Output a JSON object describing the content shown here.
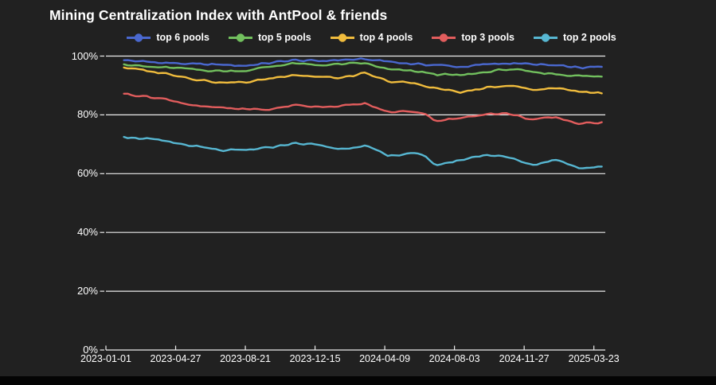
{
  "chart": {
    "title": "Mining Centralization Index with AntPool & friends"
  },
  "colors": {
    "background": "#212121",
    "bottom_bar": "#040404",
    "text": "#ffffff",
    "grid": "#ececec",
    "axis": "#ececec"
  },
  "chart_data": {
    "type": "line",
    "title": "Mining Centralization Index with AntPool & friends",
    "grid": true,
    "legend_position": "top",
    "ylim": [
      0,
      100
    ],
    "y_ticks_pct": [
      0,
      20,
      40,
      60,
      80,
      100
    ],
    "y_tick_suffix": "%",
    "x_tick_labels": [
      "2023-01-01",
      "2023-04-27",
      "2023-08-21",
      "2023-12-15",
      "2024-04-09",
      "2024-08-03",
      "2024-11-27",
      "2025-03-23"
    ],
    "x_tick_days": [
      0,
      116,
      232,
      348,
      464,
      580,
      696,
      812
    ],
    "x_domain_days": [
      0,
      831
    ],
    "sample_days": [
      30,
      70,
      110,
      150,
      190,
      230,
      270,
      310,
      350,
      390,
      430,
      470,
      510,
      530,
      550,
      590,
      630,
      670,
      710,
      750,
      790,
      831
    ],
    "series": [
      {
        "name": "top 6 pools",
        "color": "#4a68cf",
        "values": [
          98.6,
          98.0,
          97.6,
          97.2,
          97.1,
          96.7,
          97.6,
          98.6,
          98.3,
          98.7,
          98.9,
          98.2,
          97.3,
          97.1,
          97.0,
          96.3,
          97.1,
          97.6,
          97.2,
          96.7,
          96.0,
          96.4
        ]
      },
      {
        "name": "top 5 pools",
        "color": "#72c05e",
        "values": [
          97.2,
          96.3,
          96.0,
          95.4,
          94.9,
          95.0,
          96.3,
          97.5,
          96.9,
          97.2,
          97.6,
          95.4,
          94.9,
          94.4,
          93.8,
          93.4,
          94.5,
          95.6,
          94.5,
          93.9,
          93.2,
          93.0
        ]
      },
      {
        "name": "top 4 pools",
        "color": "#f0bc3d",
        "values": [
          96.1,
          94.9,
          93.8,
          92.1,
          91.0,
          91.0,
          92.3,
          93.7,
          93.0,
          92.5,
          94.1,
          91.4,
          90.8,
          89.9,
          89.0,
          87.7,
          89.0,
          90.2,
          88.5,
          89.2,
          87.9,
          87.2
        ]
      },
      {
        "name": "top 3 pools",
        "color": "#e25d5d",
        "values": [
          87.2,
          86.2,
          85.0,
          82.9,
          82.4,
          82.0,
          81.7,
          83.3,
          82.9,
          82.9,
          83.9,
          80.9,
          81.3,
          80.5,
          78.0,
          78.8,
          80.4,
          80.4,
          78.4,
          79.1,
          76.9,
          77.6
        ]
      },
      {
        "name": "top 2 pools",
        "color": "#57b7d2",
        "values": [
          72.5,
          71.8,
          70.6,
          69.2,
          67.9,
          67.9,
          68.8,
          70.3,
          69.9,
          68.3,
          69.7,
          65.9,
          67.2,
          65.8,
          62.9,
          64.6,
          66.5,
          65.5,
          63.0,
          64.8,
          61.9,
          62.5
        ]
      }
    ]
  }
}
